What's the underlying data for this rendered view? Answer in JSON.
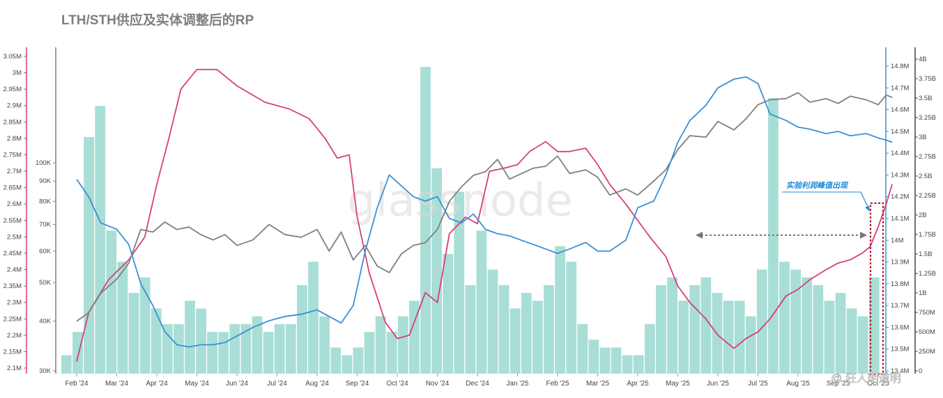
{
  "title": "LTH/STH供应及实体调整后的RP",
  "chart_data": {
    "type": "line",
    "title": "LTH/STH供应及实体调整后的RP",
    "x_labels": [
      "Feb '24",
      "Mar '24",
      "Apr '24",
      "May '24",
      "Jun '24",
      "Jul '24",
      "Aug '24",
      "Sep '24",
      "Oct '24",
      "Nov '24",
      "Dec '24",
      "Jan '25",
      "Feb '25",
      "Mar '25",
      "Apr '25",
      "May '25",
      "Jun '25",
      "Jul '25",
      "Aug '25",
      "Sep '25",
      "Oct '25"
    ],
    "axes": {
      "left_outer": {
        "color": "#d63f78",
        "ticks": [
          "2.1M",
          "2.15M",
          "2.2M",
          "2.25M",
          "2.3M",
          "2.35M",
          "2.4M",
          "2.45M",
          "2.5M",
          "2.55M",
          "2.6M",
          "2.65M",
          "2.7M",
          "2.75M",
          "2.8M",
          "2.85M",
          "2.9M",
          "2.95M",
          "3M",
          "3.05M"
        ],
        "range": [
          2100000,
          3050000
        ]
      },
      "left_inner": {
        "color": "#7f7f7f",
        "ticks": [
          "30K",
          "40K",
          "50K",
          "60K",
          "70K",
          "80K",
          "90K",
          "100K"
        ],
        "log": true,
        "range": [
          30000,
          100000
        ]
      },
      "right_inner": {
        "color": "#3a8fd6",
        "ticks": [
          "13.4M",
          "13.5M",
          "13.6M",
          "13.7M",
          "13.8M",
          "13.9M",
          "14M",
          "14.1M",
          "14.2M",
          "14.3M",
          "14.4M",
          "14.5M",
          "14.6M",
          "14.7M",
          "14.8M"
        ],
        "range": [
          13400000,
          14800000
        ]
      },
      "right_outer": {
        "color": "#444444",
        "ticks": [
          "0",
          "250M",
          "500M",
          "750M",
          "1B",
          "1.25B",
          "1.5B",
          "1.75B",
          "2B",
          "2.25B",
          "2.5B",
          "2.75B",
          "3B",
          "3.25B",
          "3.5B",
          "3.75B",
          "4B"
        ],
        "range": [
          0,
          4000000000
        ]
      }
    },
    "series": [
      {
        "color": "#d63f78",
        "axis": "left_outer",
        "x": [
          0,
          0.3,
          0.8,
          1.3,
          1.7,
          2.0,
          2.3,
          2.6,
          3.0,
          3.5,
          4.0,
          4.7,
          5.3,
          5.8,
          6.2,
          6.5,
          6.8,
          7.0,
          7.3,
          7.7,
          8.0,
          8.3,
          8.7,
          9.0,
          9.3,
          9.7,
          10.0,
          10.3,
          10.7,
          11.0,
          11.3,
          11.7,
          12.0,
          12.3,
          12.7,
          13.0,
          13.3,
          13.7,
          14.0,
          14.3,
          14.7,
          15.0,
          15.3,
          15.7,
          16.0,
          16.4,
          16.7,
          17.0,
          17.3,
          17.7,
          18.0,
          18.3,
          18.7,
          19.0,
          19.3,
          19.6,
          19.8,
          20.0,
          20.2,
          20.35
        ],
        "values": [
          2.12,
          2.27,
          2.37,
          2.43,
          2.5,
          2.66,
          2.8,
          2.95,
          3.01,
          3.01,
          2.96,
          2.91,
          2.89,
          2.86,
          2.8,
          2.74,
          2.75,
          2.56,
          2.39,
          2.24,
          2.19,
          2.2,
          2.33,
          2.3,
          2.51,
          2.56,
          2.54,
          2.7,
          2.71,
          2.72,
          2.76,
          2.79,
          2.76,
          2.76,
          2.77,
          2.72,
          2.66,
          2.6,
          2.55,
          2.5,
          2.44,
          2.35,
          2.3,
          2.25,
          2.2,
          2.16,
          2.19,
          2.21,
          2.25,
          2.32,
          2.34,
          2.37,
          2.4,
          2.42,
          2.43,
          2.45,
          2.47,
          2.53,
          2.6,
          2.66
        ]
      },
      {
        "color": "#7f7f7f",
        "axis": "left_inner",
        "x": [
          0,
          0.3,
          0.6,
          1.0,
          1.3,
          1.6,
          1.9,
          2.2,
          2.5,
          2.8,
          3.1,
          3.4,
          3.7,
          4.0,
          4.4,
          4.8,
          5.2,
          5.6,
          6.0,
          6.3,
          6.6,
          6.9,
          7.2,
          7.5,
          7.8,
          8.1,
          8.4,
          8.7,
          9.0,
          9.3,
          9.6,
          9.9,
          10.2,
          10.5,
          10.8,
          11.1,
          11.4,
          11.7,
          12.0,
          12.3,
          12.7,
          13.0,
          13.3,
          13.7,
          14.0,
          14.4,
          14.7,
          15.0,
          15.3,
          15.7,
          16.0,
          16.4,
          16.7,
          17.0,
          17.3,
          17.7,
          18.0,
          18.3,
          18.7,
          19.0,
          19.3,
          19.7,
          20.0,
          20.2,
          20.35
        ],
        "values": [
          40,
          42,
          47,
          51,
          56,
          68,
          67,
          71,
          68,
          69,
          66,
          64,
          66,
          62,
          64,
          70,
          66,
          65,
          68,
          60,
          67,
          57,
          62,
          55,
          53,
          59,
          62,
          63,
          68,
          80,
          87,
          93,
          95,
          102,
          91,
          94,
          97,
          98,
          104,
          94,
          96,
          92,
          83,
          86,
          83,
          90,
          96,
          108,
          117,
          116,
          127,
          121,
          129,
          140,
          144,
          145,
          150,
          142,
          145,
          141,
          147,
          144,
          140,
          148,
          146
        ]
      },
      {
        "color": "#3a8fd6",
        "axis": "right_inner",
        "x": [
          0,
          0.3,
          0.6,
          1.0,
          1.3,
          1.6,
          1.9,
          2.2,
          2.5,
          2.8,
          3.1,
          3.4,
          3.7,
          4.0,
          4.4,
          4.8,
          5.2,
          5.6,
          6.0,
          6.3,
          6.6,
          6.9,
          7.2,
          7.5,
          7.8,
          8.1,
          8.4,
          8.7,
          9.0,
          9.3,
          9.6,
          9.9,
          10.2,
          10.5,
          10.8,
          11.1,
          11.4,
          11.7,
          12.0,
          12.3,
          12.7,
          13.0,
          13.3,
          13.7,
          14.0,
          14.4,
          14.7,
          15.0,
          15.3,
          15.7,
          16.0,
          16.4,
          16.7,
          17.0,
          17.3,
          17.7,
          18.0,
          18.3,
          18.7,
          19.0,
          19.3,
          19.7,
          20.0,
          20.2,
          20.35
        ],
        "values": [
          14.28,
          14.2,
          14.08,
          14.05,
          13.98,
          13.8,
          13.7,
          13.58,
          13.52,
          13.51,
          13.52,
          13.52,
          13.53,
          13.56,
          13.6,
          13.63,
          13.65,
          13.66,
          13.68,
          13.65,
          13.62,
          13.7,
          13.95,
          14.15,
          14.3,
          14.25,
          14.2,
          14.18,
          14.2,
          14.1,
          14.08,
          14.12,
          14.05,
          14.03,
          14.02,
          14.0,
          13.98,
          13.96,
          13.94,
          13.96,
          13.99,
          13.95,
          13.95,
          14.0,
          14.15,
          14.18,
          14.3,
          14.45,
          14.55,
          14.62,
          14.7,
          14.74,
          14.75,
          14.72,
          14.58,
          14.55,
          14.52,
          14.51,
          14.49,
          14.5,
          14.48,
          14.49,
          14.47,
          14.46,
          14.45
        ]
      },
      {
        "color": "#a8ded6",
        "axis": "right_outer",
        "type": "bar",
        "values_B": [
          0.2,
          0.5,
          3.0,
          3.4,
          1.8,
          1.4,
          1.0,
          1.2,
          0.8,
          0.6,
          0.6,
          0.9,
          0.8,
          0.5,
          0.5,
          0.6,
          0.6,
          0.7,
          0.5,
          0.6,
          0.6,
          1.1,
          1.4,
          0.7,
          0.3,
          0.2,
          0.3,
          0.5,
          0.7,
          0.5,
          0.7,
          0.9,
          3.9,
          2.6,
          1.5,
          2.3,
          1.1,
          1.8,
          1.3,
          1.1,
          0.8,
          1.0,
          0.9,
          1.1,
          1.6,
          1.4,
          0.6,
          0.4,
          0.3,
          0.3,
          0.2,
          0.2,
          0.6,
          1.1,
          1.2,
          0.9,
          1.1,
          1.2,
          1.0,
          0.9,
          0.9,
          0.7,
          1.3,
          3.5,
          1.4,
          1.3,
          1.2,
          1.1,
          0.9,
          1.0,
          0.8,
          0.7,
          1.2
        ]
      }
    ],
    "annotation": "实验利润峰值出现"
  },
  "watermark": "glassnode",
  "credit": "@ 狂人明道明"
}
